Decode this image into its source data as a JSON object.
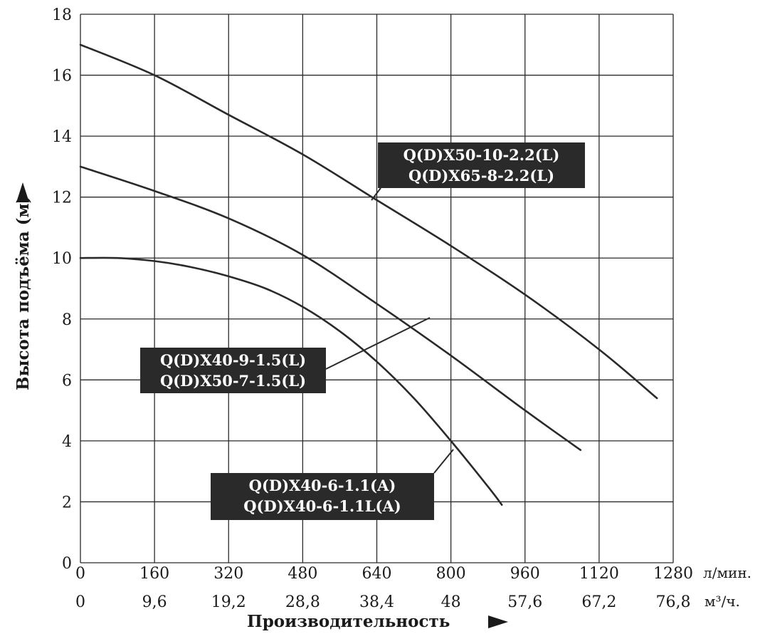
{
  "chart_data": {
    "type": "line",
    "x_unit": "л/мин.",
    "x_ticks": [
      0,
      160,
      320,
      480,
      640,
      800,
      960,
      1120,
      1280
    ],
    "x2_unit": "м³/ч.",
    "x2_ticks": [
      "0",
      "9,6",
      "19,2",
      "28,8",
      "38,4",
      "48",
      "57,6",
      "67,2",
      "76,8"
    ],
    "xlabel": "Производительность",
    "ylabel": "Высота подъёма (м)",
    "y_ticks": [
      0,
      2,
      4,
      6,
      8,
      10,
      12,
      14,
      16,
      18
    ],
    "xlim": [
      0,
      1280
    ],
    "ylim": [
      0,
      18
    ],
    "grid": true,
    "series": [
      {
        "labels": [
          "Q(D)X50-10-2.2(L)",
          "Q(D)X65-8-2.2(L)"
        ],
        "x": [
          0,
          160,
          320,
          480,
          640,
          800,
          960,
          1120,
          1245
        ],
        "y": [
          17.0,
          16.0,
          14.7,
          13.4,
          11.9,
          10.4,
          8.8,
          7.0,
          5.4
        ]
      },
      {
        "labels": [
          "Q(D)X40-9-1.5(L)",
          "Q(D)X50-7-1.5(L)"
        ],
        "x": [
          0,
          160,
          320,
          480,
          640,
          800,
          960,
          1080
        ],
        "y": [
          13.0,
          12.2,
          11.3,
          10.1,
          8.5,
          6.8,
          5.0,
          3.7
        ]
      },
      {
        "labels": [
          "Q(D)X40-6-1.1(A)",
          "Q(D)X40-6-1.1L(A)"
        ],
        "x": [
          0,
          80,
          160,
          240,
          320,
          400,
          480,
          560,
          640,
          720,
          800,
          880,
          910
        ],
        "y": [
          10.0,
          10.0,
          9.9,
          9.7,
          9.4,
          9.0,
          8.4,
          7.6,
          6.6,
          5.4,
          4.0,
          2.5,
          1.9
        ]
      }
    ]
  }
}
